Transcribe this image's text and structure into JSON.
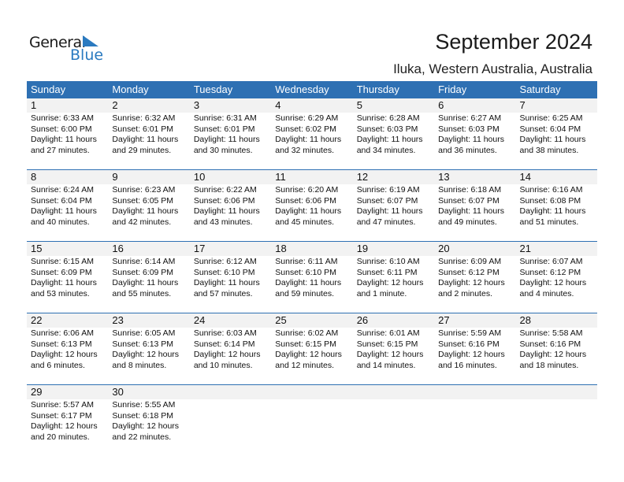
{
  "logo": {
    "word1": "General",
    "word2": "Blue",
    "brand_color": "#2a7ac0"
  },
  "header": {
    "title": "September 2024",
    "location": "Iluka, Western Australia, Australia"
  },
  "weekdays": [
    "Sunday",
    "Monday",
    "Tuesday",
    "Wednesday",
    "Thursday",
    "Friday",
    "Saturday"
  ],
  "colors": {
    "header_bg": "#2e70b3",
    "date_band": "#f2f2f2"
  },
  "start_offset": 0,
  "days": [
    {
      "date": "1",
      "sunrise": "Sunrise: 6:33 AM",
      "sunset": "Sunset: 6:00 PM",
      "daylight": "Daylight: 11 hours",
      "minutes": "and 27 minutes."
    },
    {
      "date": "2",
      "sunrise": "Sunrise: 6:32 AM",
      "sunset": "Sunset: 6:01 PM",
      "daylight": "Daylight: 11 hours",
      "minutes": "and 29 minutes."
    },
    {
      "date": "3",
      "sunrise": "Sunrise: 6:31 AM",
      "sunset": "Sunset: 6:01 PM",
      "daylight": "Daylight: 11 hours",
      "minutes": "and 30 minutes."
    },
    {
      "date": "4",
      "sunrise": "Sunrise: 6:29 AM",
      "sunset": "Sunset: 6:02 PM",
      "daylight": "Daylight: 11 hours",
      "minutes": "and 32 minutes."
    },
    {
      "date": "5",
      "sunrise": "Sunrise: 6:28 AM",
      "sunset": "Sunset: 6:03 PM",
      "daylight": "Daylight: 11 hours",
      "minutes": "and 34 minutes."
    },
    {
      "date": "6",
      "sunrise": "Sunrise: 6:27 AM",
      "sunset": "Sunset: 6:03 PM",
      "daylight": "Daylight: 11 hours",
      "minutes": "and 36 minutes."
    },
    {
      "date": "7",
      "sunrise": "Sunrise: 6:25 AM",
      "sunset": "Sunset: 6:04 PM",
      "daylight": "Daylight: 11 hours",
      "minutes": "and 38 minutes."
    },
    {
      "date": "8",
      "sunrise": "Sunrise: 6:24 AM",
      "sunset": "Sunset: 6:04 PM",
      "daylight": "Daylight: 11 hours",
      "minutes": "and 40 minutes."
    },
    {
      "date": "9",
      "sunrise": "Sunrise: 6:23 AM",
      "sunset": "Sunset: 6:05 PM",
      "daylight": "Daylight: 11 hours",
      "minutes": "and 42 minutes."
    },
    {
      "date": "10",
      "sunrise": "Sunrise: 6:22 AM",
      "sunset": "Sunset: 6:06 PM",
      "daylight": "Daylight: 11 hours",
      "minutes": "and 43 minutes."
    },
    {
      "date": "11",
      "sunrise": "Sunrise: 6:20 AM",
      "sunset": "Sunset: 6:06 PM",
      "daylight": "Daylight: 11 hours",
      "minutes": "and 45 minutes."
    },
    {
      "date": "12",
      "sunrise": "Sunrise: 6:19 AM",
      "sunset": "Sunset: 6:07 PM",
      "daylight": "Daylight: 11 hours",
      "minutes": "and 47 minutes."
    },
    {
      "date": "13",
      "sunrise": "Sunrise: 6:18 AM",
      "sunset": "Sunset: 6:07 PM",
      "daylight": "Daylight: 11 hours",
      "minutes": "and 49 minutes."
    },
    {
      "date": "14",
      "sunrise": "Sunrise: 6:16 AM",
      "sunset": "Sunset: 6:08 PM",
      "daylight": "Daylight: 11 hours",
      "minutes": "and 51 minutes."
    },
    {
      "date": "15",
      "sunrise": "Sunrise: 6:15 AM",
      "sunset": "Sunset: 6:09 PM",
      "daylight": "Daylight: 11 hours",
      "minutes": "and 53 minutes."
    },
    {
      "date": "16",
      "sunrise": "Sunrise: 6:14 AM",
      "sunset": "Sunset: 6:09 PM",
      "daylight": "Daylight: 11 hours",
      "minutes": "and 55 minutes."
    },
    {
      "date": "17",
      "sunrise": "Sunrise: 6:12 AM",
      "sunset": "Sunset: 6:10 PM",
      "daylight": "Daylight: 11 hours",
      "minutes": "and 57 minutes."
    },
    {
      "date": "18",
      "sunrise": "Sunrise: 6:11 AM",
      "sunset": "Sunset: 6:10 PM",
      "daylight": "Daylight: 11 hours",
      "minutes": "and 59 minutes."
    },
    {
      "date": "19",
      "sunrise": "Sunrise: 6:10 AM",
      "sunset": "Sunset: 6:11 PM",
      "daylight": "Daylight: 12 hours",
      "minutes": "and 1 minute."
    },
    {
      "date": "20",
      "sunrise": "Sunrise: 6:09 AM",
      "sunset": "Sunset: 6:12 PM",
      "daylight": "Daylight: 12 hours",
      "minutes": "and 2 minutes."
    },
    {
      "date": "21",
      "sunrise": "Sunrise: 6:07 AM",
      "sunset": "Sunset: 6:12 PM",
      "daylight": "Daylight: 12 hours",
      "minutes": "and 4 minutes."
    },
    {
      "date": "22",
      "sunrise": "Sunrise: 6:06 AM",
      "sunset": "Sunset: 6:13 PM",
      "daylight": "Daylight: 12 hours",
      "minutes": "and 6 minutes."
    },
    {
      "date": "23",
      "sunrise": "Sunrise: 6:05 AM",
      "sunset": "Sunset: 6:13 PM",
      "daylight": "Daylight: 12 hours",
      "minutes": "and 8 minutes."
    },
    {
      "date": "24",
      "sunrise": "Sunrise: 6:03 AM",
      "sunset": "Sunset: 6:14 PM",
      "daylight": "Daylight: 12 hours",
      "minutes": "and 10 minutes."
    },
    {
      "date": "25",
      "sunrise": "Sunrise: 6:02 AM",
      "sunset": "Sunset: 6:15 PM",
      "daylight": "Daylight: 12 hours",
      "minutes": "and 12 minutes."
    },
    {
      "date": "26",
      "sunrise": "Sunrise: 6:01 AM",
      "sunset": "Sunset: 6:15 PM",
      "daylight": "Daylight: 12 hours",
      "minutes": "and 14 minutes."
    },
    {
      "date": "27",
      "sunrise": "Sunrise: 5:59 AM",
      "sunset": "Sunset: 6:16 PM",
      "daylight": "Daylight: 12 hours",
      "minutes": "and 16 minutes."
    },
    {
      "date": "28",
      "sunrise": "Sunrise: 5:58 AM",
      "sunset": "Sunset: 6:16 PM",
      "daylight": "Daylight: 12 hours",
      "minutes": "and 18 minutes."
    },
    {
      "date": "29",
      "sunrise": "Sunrise: 5:57 AM",
      "sunset": "Sunset: 6:17 PM",
      "daylight": "Daylight: 12 hours",
      "minutes": "and 20 minutes."
    },
    {
      "date": "30",
      "sunrise": "Sunrise: 5:55 AM",
      "sunset": "Sunset: 6:18 PM",
      "daylight": "Daylight: 12 hours",
      "minutes": "and 22 minutes."
    }
  ]
}
